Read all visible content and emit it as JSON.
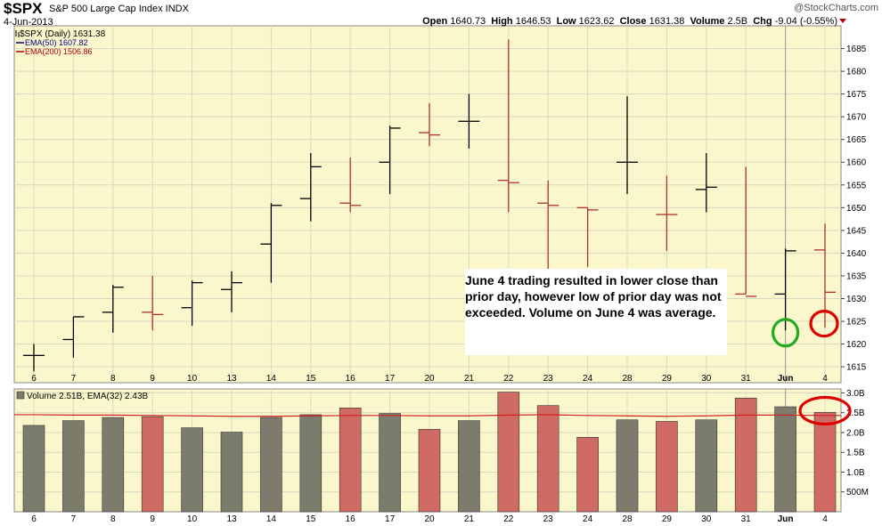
{
  "header": {
    "symbol": "$SPX",
    "company": "S&P 500 Large Cap Index  INDX",
    "date": "4-Jun-2013",
    "credit": "@StockCharts.com",
    "ohlc": [
      {
        "label": "Open",
        "value": "1640.73"
      },
      {
        "label": "High",
        "value": "1646.53"
      },
      {
        "label": "Low",
        "value": "1623.62"
      },
      {
        "label": "Close",
        "value": "1631.38"
      },
      {
        "label": "Volume",
        "value": "2.5B"
      },
      {
        "label": "Chg",
        "value": "-9.04 (-0.55%)"
      }
    ]
  },
  "legend": {
    "price": "$SPX (Daily) 1631.38",
    "ema50": "EMA(50) 1607.82",
    "ema200": "EMA(200) 1506.86",
    "volume": "Volume 2.51B, EMA(32) 2.43B"
  },
  "annotation": {
    "lines": [
      "June 4 trading resulted in lower close than",
      "prior day, however low of prior day was not",
      "exceeded.   Volume on June 4 was average."
    ]
  },
  "colors": {
    "up": "#000000",
    "down": "#b03030",
    "panel_bg": "#fbf7cc",
    "vol_up": "#7c7c6c",
    "vol_down": "#d06a64",
    "ema_line": "#d02020",
    "circle_green": "#22aa22",
    "circle_red": "#dd0000"
  },
  "chart_data": {
    "type": "bar",
    "price": {
      "ylim": [
        1611.5,
        1690
      ],
      "yticks": [
        1615,
        1620,
        1625,
        1630,
        1635,
        1640,
        1645,
        1650,
        1655,
        1660,
        1665,
        1670,
        1675,
        1680,
        1685
      ],
      "ohlc": [
        {
          "x": "6",
          "open": 1617.5,
          "high": 1620,
          "low": 1614,
          "close": 1617.5,
          "dir": "up"
        },
        {
          "x": "7",
          "open": 1621,
          "high": 1626,
          "low": 1617,
          "close": 1626,
          "dir": "up"
        },
        {
          "x": "8",
          "open": 1627,
          "high": 1633,
          "low": 1622.5,
          "close": 1632.5,
          "dir": "up"
        },
        {
          "x": "9",
          "open": 1627,
          "high": 1635,
          "low": 1623,
          "close": 1626.5,
          "dir": "down"
        },
        {
          "x": "10",
          "open": 1628,
          "high": 1634,
          "low": 1624,
          "close": 1633.5,
          "dir": "up"
        },
        {
          "x": "13",
          "open": 1632,
          "high": 1636,
          "low": 1627,
          "close": 1633.5,
          "dir": "up"
        },
        {
          "x": "14",
          "open": 1642,
          "high": 1651,
          "low": 1633.5,
          "close": 1650.5,
          "dir": "up"
        },
        {
          "x": "15",
          "open": 1652,
          "high": 1662,
          "low": 1647,
          "close": 1659,
          "dir": "up"
        },
        {
          "x": "16",
          "open": 1651,
          "high": 1661,
          "low": 1649,
          "close": 1650.5,
          "dir": "down"
        },
        {
          "x": "17",
          "open": 1660,
          "high": 1668,
          "low": 1653,
          "close": 1667.5,
          "dir": "up"
        },
        {
          "x": "20",
          "open": 1666.5,
          "high": 1673,
          "low": 1663.5,
          "close": 1666,
          "dir": "down"
        },
        {
          "x": "21",
          "open": 1669,
          "high": 1675,
          "low": 1663,
          "close": 1669,
          "dir": "up"
        },
        {
          "x": "22",
          "open": 1656,
          "high": 1687,
          "low": 1649,
          "close": 1655.5,
          "dir": "down"
        },
        {
          "x": "23",
          "open": 1651,
          "high": 1656,
          "low": 1636,
          "close": 1650.5,
          "dir": "down"
        },
        {
          "x": "24",
          "open": 1650,
          "high": 1650,
          "low": 1637,
          "close": 1649.5,
          "dir": "down"
        },
        {
          "x": "28",
          "open": 1660,
          "high": 1674.5,
          "low": 1653,
          "close": 1660,
          "dir": "up"
        },
        {
          "x": "29",
          "open": 1648.5,
          "high": 1657,
          "low": 1640.5,
          "close": 1648.5,
          "dir": "down"
        },
        {
          "x": "30",
          "open": 1654,
          "high": 1662,
          "low": 1649,
          "close": 1654.5,
          "dir": "up"
        },
        {
          "x": "31",
          "open": 1631,
          "high": 1659,
          "low": 1631,
          "close": 1630.5,
          "dir": "down"
        },
        {
          "x": "Jun",
          "open": 1631,
          "high": 1641,
          "low": 1623,
          "close": 1640.5,
          "dir": "up"
        },
        {
          "x": "4",
          "open": 1640.7,
          "high": 1646.5,
          "low": 1623.6,
          "close": 1631.4,
          "dir": "down"
        }
      ]
    },
    "volume": {
      "ylim": [
        0,
        3.1
      ],
      "ytick_labels": [
        "500M",
        "1.0B",
        "1.5B",
        "2.0B",
        "2.5B",
        "3.0B"
      ],
      "ytick_values": [
        0.5,
        1.0,
        1.5,
        2.0,
        2.5,
        3.0
      ],
      "unit": "B",
      "values": [
        2.18,
        2.3,
        2.38,
        2.4,
        2.12,
        2.01,
        2.38,
        2.45,
        2.62,
        2.48,
        2.08,
        2.3,
        3.02,
        2.68,
        1.88,
        2.32,
        2.28,
        2.32,
        2.87,
        2.65,
        2.51
      ],
      "ema": [
        2.45,
        2.44,
        2.44,
        2.43,
        2.42,
        2.41,
        2.41,
        2.42,
        2.43,
        2.43,
        2.42,
        2.42,
        2.44,
        2.45,
        2.43,
        2.42,
        2.41,
        2.42,
        2.44,
        2.44,
        2.43
      ]
    },
    "categories": [
      "6",
      "7",
      "8",
      "9",
      "10",
      "13",
      "14",
      "15",
      "16",
      "17",
      "20",
      "21",
      "22",
      "23",
      "24",
      "28",
      "29",
      "30",
      "31",
      "Jun",
      "4"
    ],
    "circles": [
      {
        "x": "Jun",
        "price": 1622.5,
        "color": "green"
      },
      {
        "x": "4",
        "price": 1624.5,
        "color": "red"
      },
      {
        "x": "4",
        "volume": 2.55,
        "color": "red"
      }
    ]
  }
}
